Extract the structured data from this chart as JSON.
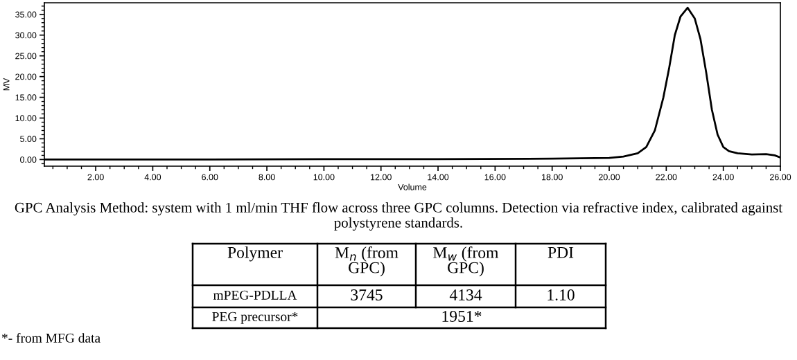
{
  "chart_data": {
    "type": "line",
    "xlabel": "Volume",
    "ylabel": "MV",
    "x": [
      0.2,
      2,
      6,
      10,
      14,
      18,
      20,
      20.5,
      21,
      21.3,
      21.6,
      21.9,
      22.1,
      22.3,
      22.5,
      22.75,
      23,
      23.2,
      23.4,
      23.6,
      23.8,
      24,
      24.2,
      24.5,
      25,
      25.5,
      25.8,
      26
    ],
    "values": [
      0,
      0,
      0,
      0.1,
      0.1,
      0.2,
      0.4,
      0.7,
      1.5,
      3,
      7,
      15,
      22,
      30,
      34.5,
      36.6,
      34,
      29,
      21,
      12,
      6,
      3,
      2,
      1.5,
      1.2,
      1.3,
      1,
      0.5
    ],
    "color": "#000000",
    "xlim": [
      0.2,
      26
    ],
    "ylim": [
      -1.6,
      37.8
    ],
    "xticks": [
      {
        "value": 2,
        "label": "2.00"
      },
      {
        "value": 4,
        "label": "4.00"
      },
      {
        "value": 6,
        "label": "6.00"
      },
      {
        "value": 8,
        "label": "8.00"
      },
      {
        "value": 10,
        "label": "10.00"
      },
      {
        "value": 12,
        "label": "12.00"
      },
      {
        "value": 14,
        "label": "14.00"
      },
      {
        "value": 16,
        "label": "16.00"
      },
      {
        "value": 18,
        "label": "18.00"
      },
      {
        "value": 20,
        "label": "20.00"
      },
      {
        "value": 22,
        "label": "22.00"
      },
      {
        "value": 24,
        "label": "24.00"
      },
      {
        "value": 26,
        "label": "26.00"
      }
    ],
    "yticks": [
      {
        "value": 0,
        "label": "0.00"
      },
      {
        "value": 5,
        "label": "5.00"
      },
      {
        "value": 10,
        "label": "10.00"
      },
      {
        "value": 15,
        "label": "15.00"
      },
      {
        "value": 20,
        "label": "20.00"
      },
      {
        "value": 25,
        "label": "25.00"
      },
      {
        "value": 30,
        "label": "30.00"
      },
      {
        "value": 35,
        "label": "35.00"
      }
    ],
    "grid": false,
    "legend": false,
    "marker": "none",
    "line_style": "solid",
    "annotations": [
      "GPC Analysis Method: system with 1 ml/min THF flow across three GPC columns. Detection via refractive index, calibrated against polystyrene standards.",
      "Polymer",
      "M$_{n}$ (from\nGPC)",
      "M$_{w}$ (from\nGPC)",
      "PDI",
      "mPEG-PDLLA",
      "3745",
      "4134",
      "1.10",
      "PEG precursor*",
      "1951*",
      "*- from MFG data"
    ]
  }
}
